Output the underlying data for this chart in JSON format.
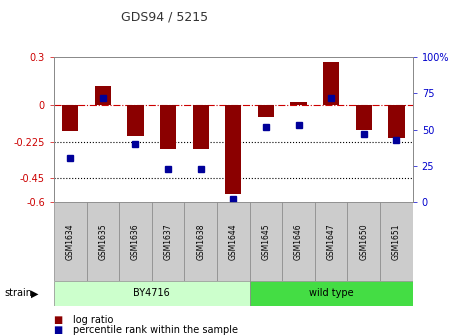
{
  "title": "GDS94 / 5215",
  "samples": [
    "GSM1634",
    "GSM1635",
    "GSM1636",
    "GSM1637",
    "GSM1638",
    "GSM1644",
    "GSM1645",
    "GSM1646",
    "GSM1647",
    "GSM1650",
    "GSM1651"
  ],
  "log_ratio": [
    -0.16,
    0.12,
    -0.19,
    -0.27,
    -0.27,
    -0.55,
    -0.07,
    0.02,
    0.27,
    -0.15,
    -0.2
  ],
  "percentile_rank": [
    30,
    72,
    40,
    23,
    23,
    2,
    52,
    53,
    72,
    47,
    43
  ],
  "bar_color": "#8B0000",
  "dot_color": "#000099",
  "ylim_left": [
    -0.6,
    0.3
  ],
  "ylim_right": [
    0,
    100
  ],
  "yticks_left": [
    0.3,
    0.0,
    -0.225,
    -0.45,
    -0.6
  ],
  "yticks_right": [
    100,
    75,
    50,
    25,
    0
  ],
  "left_tick_labels": [
    "0.3",
    "0",
    "-0.225",
    "-0.45",
    "-0.6"
  ],
  "right_tick_labels": [
    "100%",
    "75",
    "50",
    "25",
    "0"
  ],
  "strain_regions": [
    {
      "label": "BY4716",
      "start": 0,
      "end": 5,
      "facecolor": "#ccffcc"
    },
    {
      "label": "wild type",
      "start": 6,
      "end": 10,
      "facecolor": "#44dd44"
    }
  ],
  "legend_items": [
    {
      "label": "log ratio",
      "color": "#8B0000"
    },
    {
      "label": "percentile rank within the sample",
      "color": "#000099"
    }
  ],
  "bg_color": "#ffffff",
  "bar_width": 0.5,
  "dot_size": 5
}
